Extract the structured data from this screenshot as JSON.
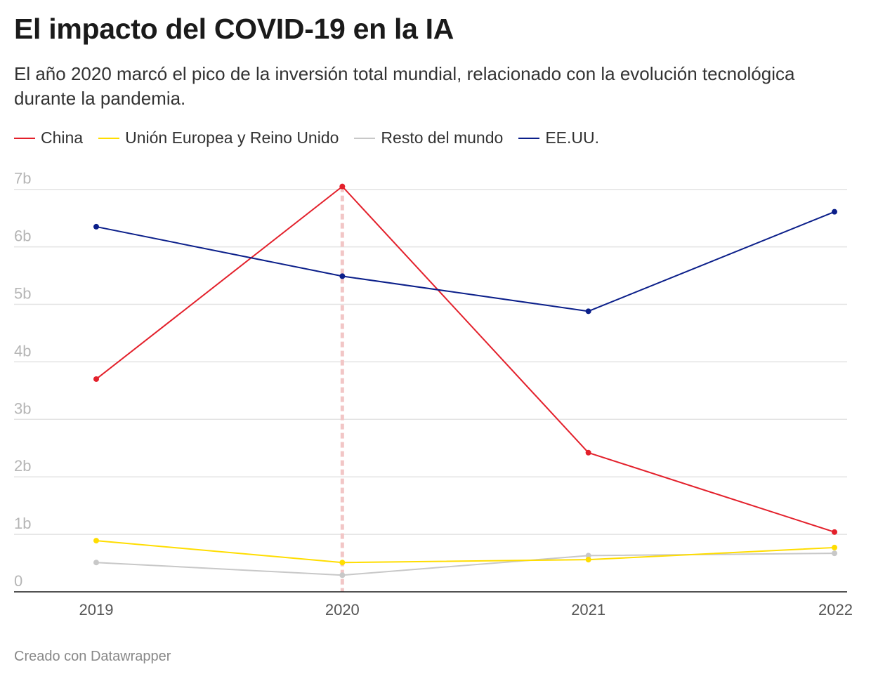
{
  "header": {
    "title": "El impacto del COVID-19 en la IA",
    "subtitle": "El año 2020 marcó el pico de la inversión total mundial, relacionado con la evolución tecnológica durante la pandemia."
  },
  "footer": {
    "credit": "Creado con Datawrapper"
  },
  "chart_data": {
    "type": "line",
    "x": [
      "2019",
      "2020",
      "2021",
      "2022"
    ],
    "y_ticks": [
      {
        "value": 0,
        "label": "0"
      },
      {
        "value": 1,
        "label": "1b"
      },
      {
        "value": 2,
        "label": "2b"
      },
      {
        "value": 3,
        "label": "3b"
      },
      {
        "value": 4,
        "label": "4b"
      },
      {
        "value": 5,
        "label": "5b"
      },
      {
        "value": 6,
        "label": "6b"
      },
      {
        "value": 7,
        "label": "7b"
      }
    ],
    "ylim": [
      0,
      7.2
    ],
    "grid": true,
    "legend_position": "top-left",
    "highlight_x": "2020",
    "series": [
      {
        "name": "China",
        "color": "#e3202b",
        "values": [
          3.7,
          7.05,
          2.42,
          1.04
        ]
      },
      {
        "name": "Unión Europea y Reino Unido",
        "color": "#ffdd00",
        "values": [
          0.89,
          0.51,
          0.56,
          0.77
        ]
      },
      {
        "name": "Resto del mundo",
        "color": "#c8c8c8",
        "values": [
          0.51,
          0.29,
          0.63,
          0.67
        ]
      },
      {
        "name": "EE.UU.",
        "color": "#0b1f8a",
        "values": [
          6.35,
          5.49,
          4.88,
          6.61
        ]
      }
    ]
  }
}
